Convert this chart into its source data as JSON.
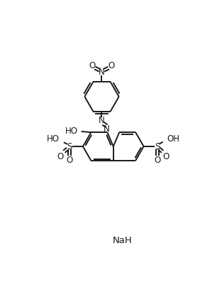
{
  "bg_color": "#ffffff",
  "line_color": "#1a1a1a",
  "line_width": 1.4,
  "font_size": 8.5,
  "fig_width": 3.13,
  "fig_height": 4.08,
  "dpi": 100,
  "xlim": [
    0,
    10
  ],
  "ylim": [
    0,
    13
  ]
}
